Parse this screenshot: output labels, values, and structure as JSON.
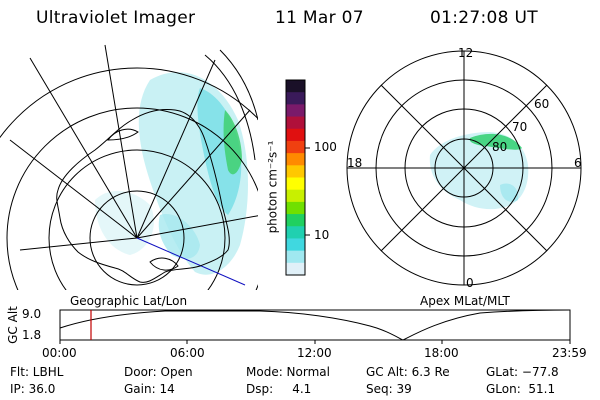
{
  "header": {
    "title": "Ultraviolet Imager",
    "date": "11 Mar 07",
    "time": "01:27:08 UT"
  },
  "colorbar": {
    "unit_label": "photon cm⁻²s⁻¹",
    "ticks": [
      "100",
      "10"
    ],
    "colors": [
      "#1a1028",
      "#3a1a5a",
      "#7a1a6a",
      "#b0103a",
      "#e01010",
      "#f04010",
      "#ff8a00",
      "#ffc800",
      "#ffff00",
      "#c8f000",
      "#70e000",
      "#20d060",
      "#20d0b0",
      "#40d8e0",
      "#a0e8f0",
      "#e0f0f8"
    ]
  },
  "left_map": {
    "caption": "Geographic Lat/Lon",
    "aurora_color": "#40d8e0",
    "aurora_edge_color": "#20c060",
    "grid_color": "#000000",
    "terminator_color": "#1010c0"
  },
  "right_map": {
    "caption": "Apex MLat/MLT",
    "mlt_labels": {
      "top": "12",
      "left": "18",
      "right": "6",
      "bottom": "0"
    },
    "mlat_labels": [
      "60",
      "70",
      "80"
    ]
  },
  "timeline": {
    "axis_label": "GC Alt",
    "y_ticks": [
      "9.0",
      "1.8"
    ],
    "x_ticks": [
      "00:00",
      "06:00",
      "12:00",
      "18:00",
      "23:59"
    ],
    "cursor_color": "#c00000"
  },
  "footer": {
    "filter": "Flt: LBHL",
    "ip": "IP: 36.0",
    "door": "Door: Open",
    "gain": "Gain: 14",
    "mode": "Mode: Normal",
    "dsp": "Dsp:     4.1",
    "gc_alt": "GC Alt: 6.3 Re",
    "seq": "Seq: 39",
    "glat": "GLat: −77.8",
    "glon": "GLon:  51.1"
  }
}
